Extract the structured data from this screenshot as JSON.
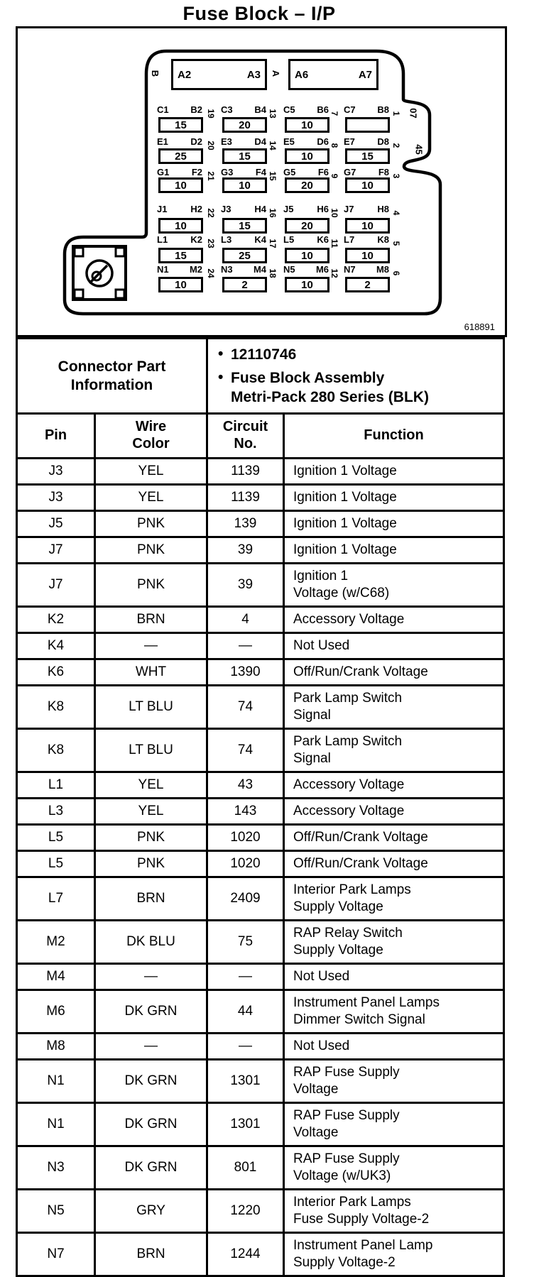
{
  "page_title": "Fuse Block – I/P",
  "figure_number": "618891",
  "diagram": {
    "relay_cavities": [
      {
        "side_letter": "B",
        "left_label": "A2",
        "right_label": "A3"
      },
      {
        "side_letter": "A",
        "left_label": "A6",
        "right_label": "A7"
      }
    ],
    "edge_numbers": [
      "07",
      "45"
    ],
    "fuse_columns": [
      {
        "cells": [
          {
            "left": "C1",
            "right": "B2",
            "cavity": "19",
            "amp": "15"
          },
          {
            "left": "E1",
            "right": "D2",
            "cavity": "20",
            "amp": "25"
          },
          {
            "left": "G1",
            "right": "F2",
            "cavity": "21",
            "amp": "10"
          },
          {
            "left": "J1",
            "right": "H2",
            "cavity": "22",
            "amp": "10"
          },
          {
            "left": "L1",
            "right": "K2",
            "cavity": "23",
            "amp": "15"
          },
          {
            "left": "N1",
            "right": "M2",
            "cavity": "24",
            "amp": "10"
          }
        ]
      },
      {
        "cells": [
          {
            "left": "C3",
            "right": "B4",
            "cavity": "13",
            "amp": "20"
          },
          {
            "left": "E3",
            "right": "D4",
            "cavity": "14",
            "amp": "15"
          },
          {
            "left": "G3",
            "right": "F4",
            "cavity": "15",
            "amp": "10"
          },
          {
            "left": "J3",
            "right": "H4",
            "cavity": "16",
            "amp": "15"
          },
          {
            "left": "L3",
            "right": "K4",
            "cavity": "17",
            "amp": "25"
          },
          {
            "left": "N3",
            "right": "M4",
            "cavity": "18",
            "amp": "2"
          }
        ]
      },
      {
        "cells": [
          {
            "left": "C5",
            "right": "B6",
            "cavity": "7",
            "amp": "10"
          },
          {
            "left": "E5",
            "right": "D6",
            "cavity": "8",
            "amp": "10"
          },
          {
            "left": "G5",
            "right": "F6",
            "cavity": "9",
            "amp": "20"
          },
          {
            "left": "J5",
            "right": "H6",
            "cavity": "10",
            "amp": "20"
          },
          {
            "left": "L5",
            "right": "K6",
            "cavity": "11",
            "amp": "10"
          },
          {
            "left": "N5",
            "right": "M6",
            "cavity": "12",
            "amp": "10"
          }
        ]
      },
      {
        "cells": [
          {
            "left": "C7",
            "right": "B8",
            "cavity": "1",
            "amp": ""
          },
          {
            "left": "E7",
            "right": "D8",
            "cavity": "2",
            "amp": "15"
          },
          {
            "left": "G7",
            "right": "F8",
            "cavity": "3",
            "amp": "10"
          },
          {
            "left": "J7",
            "right": "H8",
            "cavity": "4",
            "amp": "10"
          },
          {
            "left": "L7",
            "right": "K8",
            "cavity": "5",
            "amp": "10"
          },
          {
            "left": "N7",
            "right": "M8",
            "cavity": "6",
            "amp": "2"
          }
        ]
      }
    ]
  },
  "table": {
    "part_info_label": "Connector Part\nInformation",
    "part_info_items": [
      "12110746",
      "Fuse Block Assembly\nMetri-Pack 280 Series (BLK)"
    ],
    "columns": [
      "Pin",
      "Wire\nColor",
      "Circuit\nNo.",
      "Function"
    ],
    "rows": [
      {
        "pin": "J3",
        "wire_color": "YEL",
        "circuit_no": "1139",
        "function": "Ignition 1 Voltage"
      },
      {
        "pin": "J3",
        "wire_color": "YEL",
        "circuit_no": "1139",
        "function": "Ignition 1 Voltage"
      },
      {
        "pin": "J5",
        "wire_color": "PNK",
        "circuit_no": "139",
        "function": "Ignition 1 Voltage"
      },
      {
        "pin": "J7",
        "wire_color": "PNK",
        "circuit_no": "39",
        "function": "Ignition 1 Voltage"
      },
      {
        "pin": "J7",
        "wire_color": "PNK",
        "circuit_no": "39",
        "function": "Ignition 1\nVoltage (w/C68)"
      },
      {
        "pin": "K2",
        "wire_color": "BRN",
        "circuit_no": "4",
        "function": "Accessory Voltage"
      },
      {
        "pin": "K4",
        "wire_color": "—",
        "circuit_no": "—",
        "function": "Not Used"
      },
      {
        "pin": "K6",
        "wire_color": "WHT",
        "circuit_no": "1390",
        "function": "Off/Run/Crank Voltage"
      },
      {
        "pin": "K8",
        "wire_color": "LT BLU",
        "circuit_no": "74",
        "function": "Park Lamp Switch\nSignal"
      },
      {
        "pin": "K8",
        "wire_color": "LT BLU",
        "circuit_no": "74",
        "function": "Park Lamp Switch\nSignal"
      },
      {
        "pin": "L1",
        "wire_color": "YEL",
        "circuit_no": "43",
        "function": "Accessory Voltage"
      },
      {
        "pin": "L3",
        "wire_color": "YEL",
        "circuit_no": "143",
        "function": "Accessory Voltage"
      },
      {
        "pin": "L5",
        "wire_color": "PNK",
        "circuit_no": "1020",
        "function": "Off/Run/Crank Voltage"
      },
      {
        "pin": "L5",
        "wire_color": "PNK",
        "circuit_no": "1020",
        "function": "Off/Run/Crank Voltage"
      },
      {
        "pin": "L7",
        "wire_color": "BRN",
        "circuit_no": "2409",
        "function": "Interior Park Lamps\nSupply Voltage"
      },
      {
        "pin": "M2",
        "wire_color": "DK BLU",
        "circuit_no": "75",
        "function": "RAP Relay Switch\nSupply Voltage"
      },
      {
        "pin": "M4",
        "wire_color": "—",
        "circuit_no": "—",
        "function": "Not Used"
      },
      {
        "pin": "M6",
        "wire_color": "DK GRN",
        "circuit_no": "44",
        "function": "Instrument Panel Lamps\nDimmer Switch Signal"
      },
      {
        "pin": "M8",
        "wire_color": "—",
        "circuit_no": "—",
        "function": "Not Used"
      },
      {
        "pin": "N1",
        "wire_color": "DK GRN",
        "circuit_no": "1301",
        "function": "RAP Fuse Supply\nVoltage"
      },
      {
        "pin": "N1",
        "wire_color": "DK GRN",
        "circuit_no": "1301",
        "function": "RAP Fuse Supply\nVoltage"
      },
      {
        "pin": "N3",
        "wire_color": "DK GRN",
        "circuit_no": "801",
        "function": "RAP Fuse Supply\nVoltage (w/UK3)"
      },
      {
        "pin": "N5",
        "wire_color": "GRY",
        "circuit_no": "1220",
        "function": "Interior Park Lamps\nFuse Supply Voltage-2"
      },
      {
        "pin": "N7",
        "wire_color": "BRN",
        "circuit_no": "1244",
        "function": "Instrument Panel Lamp\nSupply Voltage-2"
      }
    ]
  }
}
